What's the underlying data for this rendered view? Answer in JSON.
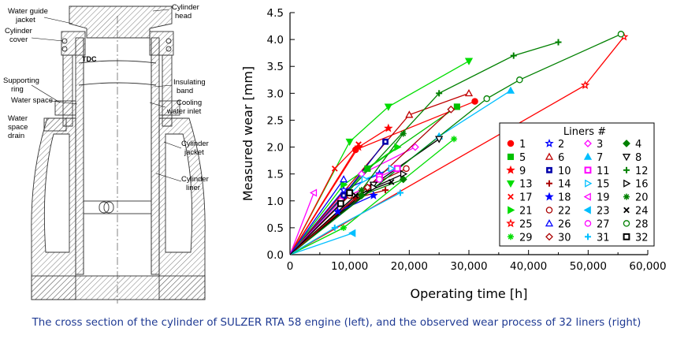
{
  "diagram": {
    "labels": {
      "water_guide_jacket": [
        "Water guide",
        "jacket"
      ],
      "cylinder_cover": [
        "Cylinder",
        "cover"
      ],
      "tdc": "TDC",
      "supporting_ring": [
        "Supporting",
        "ring"
      ],
      "water_space": "Water space",
      "water_space_drain": [
        "Water",
        "space",
        "drain"
      ],
      "cylinder_head": [
        "Cylinder",
        "head"
      ],
      "insulating_band": [
        "Insulating",
        "band"
      ],
      "cooling_water_inlet": [
        "Cooling",
        "water inlet"
      ],
      "cylinder_jacket": [
        "Cylinder",
        "jacket"
      ],
      "cylinder_liner": [
        "Cylinder",
        "liner"
      ]
    }
  },
  "chart_data": {
    "type": "line",
    "xlabel": "Operating time  [h]",
    "ylabel": "Measured wear  [mm]",
    "xlim": [
      0,
      60000
    ],
    "ylim": [
      0,
      4.5
    ],
    "xticks": [
      "0",
      "10,000",
      "20,000",
      "30,000",
      "40,000",
      "50,000",
      "60,000"
    ],
    "yticks": [
      "0.0",
      "0.5",
      "1.0",
      "1.5",
      "2.0",
      "2.5",
      "3.0",
      "3.5",
      "4.0",
      "4.5"
    ],
    "grid": false,
    "legend_title": "Liners #",
    "legend_position": "lower-right",
    "series": [
      {
        "name": "1",
        "color": "#ff0000",
        "marker": "circle",
        "points": [
          [
            0,
            0
          ],
          [
            11000,
            1.95
          ],
          [
            31000,
            2.85
          ]
        ]
      },
      {
        "name": "2",
        "color": "#0000ff",
        "marker": "star-open",
        "points": [
          [
            0,
            0
          ],
          [
            9000,
            1.2
          ],
          [
            15000,
            1.5
          ]
        ]
      },
      {
        "name": "3",
        "color": "#ff00ff",
        "marker": "diamond-open",
        "points": [
          [
            0,
            0
          ],
          [
            12000,
            1.5
          ],
          [
            21000,
            2.0
          ]
        ]
      },
      {
        "name": "4",
        "color": "#008000",
        "marker": "diamond",
        "points": [
          [
            0,
            0
          ],
          [
            12000,
            1.1
          ],
          [
            19000,
            1.4
          ]
        ]
      },
      {
        "name": "5",
        "color": "#00c000",
        "marker": "square",
        "points": [
          [
            0,
            0
          ],
          [
            13000,
            1.6
          ],
          [
            28000,
            2.75
          ]
        ]
      },
      {
        "name": "6",
        "color": "#c00000",
        "marker": "triangle-open",
        "points": [
          [
            0,
            0
          ],
          [
            20000,
            2.6
          ],
          [
            30000,
            3.0
          ]
        ]
      },
      {
        "name": "7",
        "color": "#00bfff",
        "marker": "triangle",
        "points": [
          [
            0,
            0
          ],
          [
            25000,
            2.2
          ],
          [
            37000,
            3.05
          ]
        ]
      },
      {
        "name": "8",
        "color": "#000000",
        "marker": "triangle-down-open",
        "points": [
          [
            0,
            0
          ],
          [
            14000,
            1.3
          ],
          [
            25000,
            2.15
          ]
        ]
      },
      {
        "name": "9",
        "color": "#ff0000",
        "marker": "star",
        "points": [
          [
            0,
            0
          ],
          [
            11500,
            2.0
          ],
          [
            16500,
            2.35
          ]
        ]
      },
      {
        "name": "10",
        "color": "#0000aa",
        "marker": "square-dot",
        "points": [
          [
            0,
            0
          ],
          [
            9000,
            1.1
          ],
          [
            16000,
            2.1
          ]
        ]
      },
      {
        "name": "11",
        "color": "#ff00ff",
        "marker": "square-open",
        "points": [
          [
            0,
            0
          ],
          [
            15000,
            1.45
          ],
          [
            18000,
            1.6
          ]
        ]
      },
      {
        "name": "12",
        "color": "#008000",
        "marker": "plus",
        "points": [
          [
            0,
            0
          ],
          [
            25000,
            3.0
          ],
          [
            37500,
            3.7
          ],
          [
            45000,
            3.95
          ]
        ]
      },
      {
        "name": "13",
        "color": "#00dd00",
        "marker": "triangle-down",
        "points": [
          [
            0,
            0
          ],
          [
            10000,
            2.1
          ],
          [
            16500,
            2.75
          ],
          [
            30000,
            3.6
          ]
        ]
      },
      {
        "name": "14",
        "color": "#aa0000",
        "marker": "plus",
        "points": [
          [
            0,
            0
          ],
          [
            11000,
            1.05
          ],
          [
            16000,
            1.2
          ]
        ]
      },
      {
        "name": "15",
        "color": "#00bfff",
        "marker": "triangle-right-open",
        "points": [
          [
            0,
            0
          ],
          [
            12500,
            1.4
          ],
          [
            17000,
            1.6
          ]
        ]
      },
      {
        "name": "16",
        "color": "#000000",
        "marker": "triangle-right-open",
        "points": [
          [
            0,
            0
          ],
          [
            14000,
            1.25
          ],
          [
            19000,
            1.5
          ]
        ]
      },
      {
        "name": "17",
        "color": "#ff0000",
        "marker": "x",
        "points": [
          [
            0,
            0
          ],
          [
            7500,
            1.6
          ],
          [
            11500,
            2.05
          ]
        ]
      },
      {
        "name": "18",
        "color": "#0000ff",
        "marker": "star",
        "points": [
          [
            0,
            0
          ],
          [
            8000,
            0.8
          ],
          [
            14000,
            1.1
          ]
        ]
      },
      {
        "name": "19",
        "color": "#ff00ff",
        "marker": "triangle-left-open",
        "points": [
          [
            0,
            0
          ],
          [
            4000,
            1.15
          ]
        ]
      },
      {
        "name": "20",
        "color": "#008000",
        "marker": "asterisk",
        "points": [
          [
            0,
            0
          ],
          [
            12000,
            1.2
          ],
          [
            19000,
            2.25
          ]
        ]
      },
      {
        "name": "21",
        "color": "#00dd00",
        "marker": "triangle-right",
        "points": [
          [
            0,
            0
          ],
          [
            9000,
            1.3
          ],
          [
            18000,
            2.0
          ]
        ]
      },
      {
        "name": "22",
        "color": "#aa0000",
        "marker": "circle-open",
        "points": [
          [
            0,
            0
          ],
          [
            10000,
            1.1
          ],
          [
            19500,
            1.6
          ]
        ]
      },
      {
        "name": "23",
        "color": "#00bfff",
        "marker": "triangle-left",
        "points": [
          [
            0,
            0
          ],
          [
            10500,
            0.4
          ]
        ]
      },
      {
        "name": "24",
        "color": "#000000",
        "marker": "x",
        "points": [
          [
            0,
            0
          ],
          [
            11000,
            1.1
          ],
          [
            17000,
            1.35
          ]
        ]
      },
      {
        "name": "25",
        "color": "#ff0000",
        "marker": "star-open",
        "points": [
          [
            0,
            0
          ],
          [
            49500,
            3.15
          ],
          [
            56000,
            4.05
          ]
        ]
      },
      {
        "name": "26",
        "color": "#0000ff",
        "marker": "triangle-open",
        "points": [
          [
            0,
            0
          ],
          [
            9000,
            1.4
          ]
        ]
      },
      {
        "name": "27",
        "color": "#ff00ff",
        "marker": "circle-open",
        "points": [
          [
            0,
            0
          ],
          [
            8500,
            1.0
          ],
          [
            15000,
            1.4
          ]
        ]
      },
      {
        "name": "28",
        "color": "#008000",
        "marker": "circle-open",
        "points": [
          [
            0,
            0
          ],
          [
            33000,
            2.9
          ],
          [
            38500,
            3.25
          ],
          [
            55500,
            4.1
          ]
        ]
      },
      {
        "name": "29",
        "color": "#00dd00",
        "marker": "asterisk",
        "points": [
          [
            0,
            0
          ],
          [
            9000,
            0.5
          ],
          [
            27500,
            2.15
          ]
        ]
      },
      {
        "name": "30",
        "color": "#aa0000",
        "marker": "diamond-open",
        "points": [
          [
            0,
            0
          ],
          [
            13000,
            1.25
          ],
          [
            27000,
            2.7
          ]
        ]
      },
      {
        "name": "31",
        "color": "#00bfff",
        "marker": "plus",
        "points": [
          [
            0,
            0
          ],
          [
            7500,
            0.5
          ],
          [
            18500,
            1.15
          ]
        ]
      },
      {
        "name": "32",
        "color": "#000000",
        "marker": "square-open",
        "points": [
          [
            0,
            0
          ],
          [
            8500,
            0.95
          ],
          [
            10000,
            1.15
          ]
        ]
      }
    ]
  },
  "caption": "The cross section of the cylinder of SULZER RTA 58 engine (left), and the observed wear process of 32 liners (right)"
}
